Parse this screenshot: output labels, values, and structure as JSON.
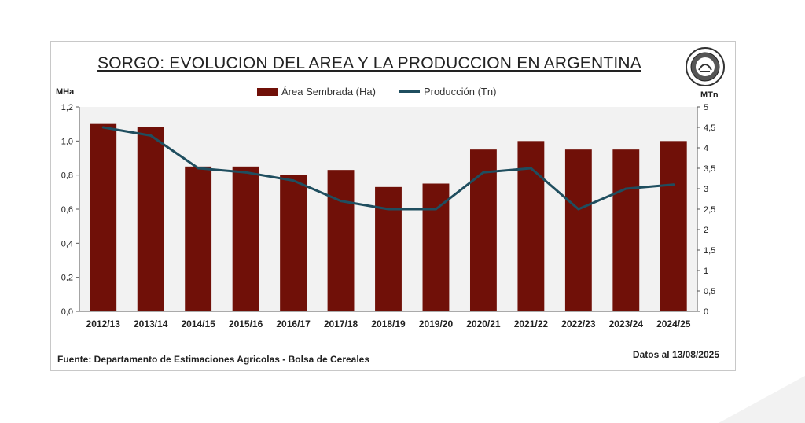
{
  "chart_data": {
    "type": "bar",
    "title": "SORGO: EVOLUCION DEL AREA Y LA PRODUCCION EN ARGENTINA",
    "categories": [
      "2012/13",
      "2013/14",
      "2014/15",
      "2015/16",
      "2016/17",
      "2017/18",
      "2018/19",
      "2019/20",
      "2020/21",
      "2021/22",
      "2022/23",
      "2023/24",
      "2024/25"
    ],
    "series": [
      {
        "name": "Área Sembrada (Ha)",
        "type": "bar",
        "axis": "left",
        "color": "#701008",
        "values": [
          1.1,
          1.08,
          0.85,
          0.85,
          0.8,
          0.83,
          0.73,
          0.75,
          0.95,
          1.0,
          0.95,
          0.95,
          1.0
        ]
      },
      {
        "name": "Producción (Tn)",
        "type": "line",
        "axis": "right",
        "color": "#1f4e5f",
        "values": [
          4.5,
          4.3,
          3.5,
          3.4,
          3.2,
          2.7,
          2.5,
          2.5,
          3.4,
          3.5,
          2.5,
          3.0,
          3.1
        ]
      }
    ],
    "y_left": {
      "label": "MHa",
      "range": [
        0,
        1.2
      ],
      "ticks": [
        "0,0",
        "0,2",
        "0,4",
        "0,6",
        "0,8",
        "1,0",
        "1,2"
      ]
    },
    "y_right": {
      "label": "MTn",
      "range": [
        0,
        5
      ],
      "ticks": [
        "0",
        "0,5",
        "1",
        "1,5",
        "2",
        "2,5",
        "3",
        "3,5",
        "4",
        "4,5",
        "5"
      ]
    },
    "legend_position": "top-center",
    "source": "Fuente: Departamento de Estimaciones Agricolas - Bolsa de Cereales",
    "date_note": "Datos al 13/08/2025"
  }
}
